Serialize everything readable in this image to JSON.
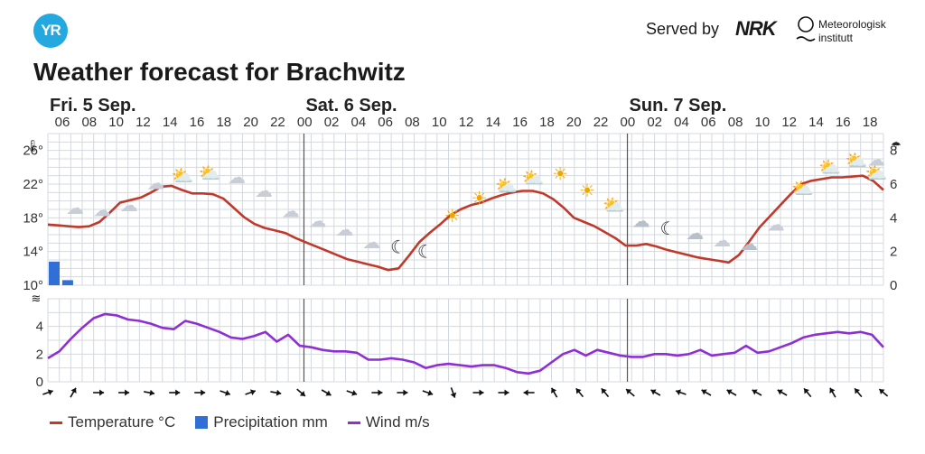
{
  "header": {
    "logo": "YR",
    "served_by": "Served by",
    "nrk": "NRK",
    "met": "Meteorologisk institutt"
  },
  "title": "Weather forecast for Brachwitz",
  "legend": {
    "temperature": "Temperature °C",
    "precipitation": "Precipitation mm",
    "wind": "Wind m/s"
  },
  "colors": {
    "temperature": "#c0392b",
    "precipitation": "#2f6fd6",
    "wind": "#8e2fd6",
    "grid": "#d3d9e0",
    "day_line": "#555555",
    "logo": "#24a8e0"
  },
  "chart_data": {
    "type": "line",
    "hours_total": 62,
    "days": [
      {
        "label": "Fri. 5 Sep.",
        "start_hour": 0
      },
      {
        "label": "Sat. 6 Sep.",
        "start_hour": 19
      },
      {
        "label": "Sun. 7 Sep.",
        "start_hour": 43
      }
    ],
    "hour_ticks": [
      "06",
      "08",
      "10",
      "12",
      "14",
      "16",
      "18",
      "20",
      "22",
      "00",
      "02",
      "04",
      "06",
      "08",
      "10",
      "12",
      "14",
      "16",
      "18",
      "20",
      "22",
      "00",
      "02",
      "04",
      "06",
      "08",
      "10",
      "12",
      "14",
      "16",
      "18"
    ],
    "temperature": {
      "unit": "°C",
      "ylim": [
        10,
        28
      ],
      "ticks": [
        10,
        14,
        18,
        22,
        26
      ],
      "values": [
        17.2,
        17.1,
        17.0,
        16.9,
        17.0,
        17.5,
        18.6,
        19.8,
        20.1,
        20.4,
        21.0,
        21.7,
        21.8,
        21.3,
        20.9,
        20.9,
        20.8,
        20.3,
        19.2,
        18.1,
        17.3,
        16.8,
        16.5,
        16.2,
        15.6,
        15.1,
        14.6,
        14.1,
        13.6,
        13.1,
        12.8,
        12.5,
        12.2,
        11.8,
        12.0,
        13.5,
        15.1,
        16.2,
        17.2,
        18.3,
        19.0,
        19.5,
        19.8,
        20.3,
        20.7,
        21.0,
        21.2,
        21.2,
        20.9,
        20.2,
        19.2,
        18.0,
        17.5,
        17.0,
        16.3,
        15.6,
        14.7,
        14.7,
        14.9,
        14.6,
        14.2,
        13.9
      ]
    },
    "temperature_day3_extra": [
      13.6,
      13.3,
      13.1,
      12.9,
      12.7,
      13.6,
      15.2,
      16.9,
      18.2,
      19.5,
      20.8,
      22.0,
      22.4,
      22.6,
      22.8,
      22.8,
      22.9,
      23.0,
      22.4,
      21.3
    ],
    "precipitation": {
      "unit": "mm",
      "ylim": [
        0,
        9
      ],
      "ticks": [
        0,
        2,
        4,
        6,
        8
      ],
      "bars": [
        {
          "hour": 0,
          "value": 1.4
        },
        {
          "hour": 1,
          "value": 0.3
        }
      ]
    },
    "wind": {
      "unit": "m/s",
      "ylim": [
        0,
        6
      ],
      "ticks": [
        0,
        2,
        4
      ],
      "values": [
        1.7,
        2.2,
        3.1,
        3.9,
        4.6,
        4.9,
        4.8,
        4.5,
        4.4,
        4.2,
        3.9,
        3.8,
        4.4,
        4.2,
        3.9,
        3.6,
        3.2,
        3.1,
        3.3,
        3.6,
        2.9,
        3.4,
        2.6,
        2.5,
        2.3,
        2.2,
        2.2,
        2.1,
        1.6,
        1.6,
        1.7,
        1.6,
        1.4,
        1.0,
        1.2,
        1.3,
        1.2,
        1.1,
        1.2,
        1.2,
        1.0,
        0.7,
        0.6,
        0.8,
        1.4,
        2.0,
        2.3,
        1.9,
        2.3,
        2.1,
        1.9,
        1.8,
        1.8,
        2.0,
        2.0,
        1.9,
        2.0,
        2.3,
        1.9,
        2.0,
        2.1,
        2.6,
        2.1,
        2.2,
        2.5,
        2.8,
        3.2,
        3.4,
        3.5,
        3.6,
        3.5,
        3.6,
        3.4,
        2.5
      ]
    },
    "symbols": [
      "cloud",
      "cloud",
      "cloud",
      "cloud",
      "partly-cloudy-day",
      "partly-cloudy-day",
      "cloud",
      "cloud",
      "cloud",
      "cloud",
      "cloud",
      "cloud",
      "moon",
      "moon",
      "sun",
      "sun",
      "partly-cloudy-day",
      "partly-cloudy-day",
      "sun",
      "sun",
      "partly-cloudy-day",
      "partly-cloudy-night",
      "moon",
      "partly-cloudy-night",
      "cloud",
      "partly-cloudy-night",
      "cloud",
      "partly-cloudy-day",
      "partly-cloudy-day",
      "partly-cloudy-day",
      "cloud",
      "partly-cloudy-day"
    ],
    "wind_directions": [
      70,
      30,
      90,
      90,
      100,
      90,
      90,
      110,
      70,
      100,
      130,
      120,
      110,
      90,
      90,
      110,
      160,
      90,
      90,
      270,
      330,
      320,
      320,
      310,
      300,
      290,
      300,
      300,
      300,
      300,
      320,
      330,
      320,
      310
    ]
  }
}
